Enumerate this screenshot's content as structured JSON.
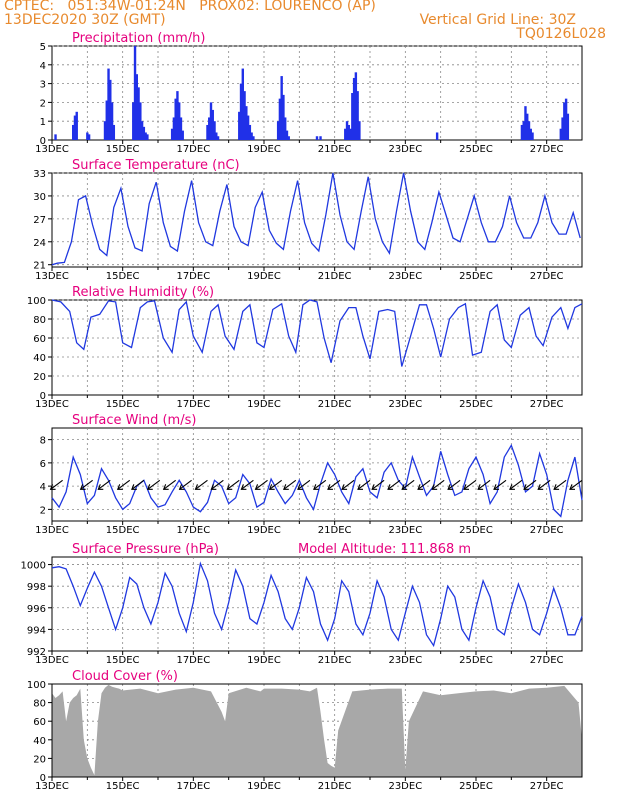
{
  "header": {
    "line1_left": "CPTEC:   051:34W-01:24N   PROX02: LOURENCO (AP)",
    "line2_left": "13DEC2020 30Z (GMT)",
    "line2_right": "Vertical Grid Line: 30Z",
    "line3_right": "TQ0126L028"
  },
  "colors": {
    "line": "#2038e0",
    "bar": "#2030e8",
    "cloud": "#a8a8a8",
    "title": "#e6007e",
    "header": "#e88a2e",
    "grid": "#888888"
  },
  "chart_data": [
    {
      "type": "bar",
      "title": "Precipitation (mm/h)",
      "ylim": [
        0,
        5
      ],
      "yticks": [
        0,
        1,
        2,
        3,
        4,
        5
      ],
      "xlim_days": [
        13,
        28
      ],
      "xticks": [
        "13DEC",
        "15DEC",
        "17DEC",
        "19DEC",
        "21DEC",
        "23DEC",
        "25DEC",
        "27DEC"
      ],
      "x_day": [
        13.1,
        13.6,
        13.65,
        13.7,
        14.0,
        14.05,
        14.5,
        14.55,
        14.6,
        14.65,
        14.7,
        14.75,
        15.3,
        15.35,
        15.4,
        15.45,
        15.5,
        15.55,
        15.6,
        15.65,
        15.7,
        16.4,
        16.45,
        16.5,
        16.55,
        16.6,
        16.65,
        16.7,
        17.4,
        17.45,
        17.5,
        17.55,
        17.6,
        17.65,
        17.7,
        18.3,
        18.35,
        18.4,
        18.45,
        18.5,
        18.55,
        18.6,
        18.65,
        18.7,
        19.4,
        19.45,
        19.5,
        19.55,
        19.6,
        19.65,
        19.7,
        20.5,
        20.6,
        21.3,
        21.35,
        21.4,
        21.45,
        21.5,
        21.55,
        21.6,
        21.65,
        21.7,
        23.9,
        26.3,
        26.35,
        26.4,
        26.45,
        26.5,
        26.55,
        26.6,
        27.4,
        27.45,
        27.5,
        27.55,
        27.6
      ],
      "values": [
        0.3,
        0.8,
        1.3,
        1.5,
        0.4,
        0.3,
        1.0,
        2.1,
        3.8,
        3.2,
        2.0,
        0.8,
        2.0,
        5.0,
        3.5,
        2.8,
        2.0,
        1.0,
        0.7,
        0.4,
        0.3,
        0.6,
        1.2,
        2.2,
        2.6,
        2.0,
        1.2,
        0.5,
        0.8,
        1.2,
        2.0,
        1.6,
        1.0,
        0.4,
        0.2,
        1.5,
        3.0,
        3.8,
        2.6,
        1.8,
        1.3,
        0.8,
        0.4,
        0.2,
        1.0,
        2.2,
        3.4,
        2.4,
        1.2,
        0.5,
        0.2,
        0.2,
        0.2,
        0.6,
        1.0,
        0.8,
        0.6,
        2.5,
        3.3,
        3.6,
        2.6,
        1.0,
        0.4,
        0.8,
        1.0,
        1.8,
        1.4,
        1.0,
        0.6,
        0.4,
        0.6,
        1.2,
        2.0,
        2.2,
        1.4
      ]
    },
    {
      "type": "line",
      "title": "Surface Temperature (nC)",
      "ylim": [
        20.7,
        33
      ],
      "yticks": [
        21,
        24,
        27,
        30,
        33
      ],
      "xlim_days": [
        13,
        28
      ],
      "xticks": [
        "13DEC",
        "15DEC",
        "17DEC",
        "19DEC",
        "21DEC",
        "23DEC",
        "25DEC",
        "27DEC"
      ],
      "x_day": [
        13.0,
        13.15,
        13.35,
        13.55,
        13.75,
        13.95,
        14.15,
        14.35,
        14.55,
        14.75,
        14.95,
        15.15,
        15.35,
        15.55,
        15.75,
        15.95,
        16.15,
        16.35,
        16.55,
        16.75,
        16.95,
        17.15,
        17.35,
        17.55,
        17.75,
        17.95,
        18.15,
        18.35,
        18.55,
        18.75,
        18.95,
        19.15,
        19.35,
        19.55,
        19.75,
        19.95,
        20.15,
        20.35,
        20.55,
        20.75,
        20.95,
        21.15,
        21.35,
        21.55,
        21.75,
        21.95,
        22.15,
        22.35,
        22.55,
        22.75,
        22.95,
        23.15,
        23.35,
        23.55,
        23.75,
        23.95,
        24.15,
        24.35,
        24.55,
        24.75,
        24.95,
        25.15,
        25.35,
        25.55,
        25.75,
        25.95,
        26.15,
        26.35,
        26.55,
        26.75,
        26.95,
        27.15,
        27.35,
        27.55,
        27.75,
        27.95
      ],
      "values": [
        21.0,
        21.2,
        21.3,
        24.0,
        29.5,
        30.0,
        26.2,
        23.0,
        22.2,
        28.5,
        31.0,
        26.0,
        23.2,
        22.8,
        29.0,
        31.8,
        26.5,
        23.4,
        22.8,
        28.0,
        32.0,
        26.5,
        24.0,
        23.5,
        28.0,
        31.5,
        26.0,
        24.0,
        23.5,
        28.5,
        30.5,
        25.5,
        23.8,
        23.0,
        28.0,
        32.0,
        26.5,
        23.8,
        22.8,
        27.5,
        33.0,
        27.5,
        24.0,
        23.0,
        28.0,
        32.5,
        27.0,
        24.0,
        22.5,
        28.0,
        33.0,
        28.0,
        24.0,
        23.0,
        26.5,
        30.5,
        27.5,
        24.5,
        24.0,
        27.0,
        30.0,
        26.5,
        24.0,
        24.0,
        26.0,
        30.0,
        26.5,
        24.5,
        24.5,
        26.5,
        30.0,
        26.5,
        25.0,
        25.0,
        27.8,
        24.5
      ]
    },
    {
      "type": "line",
      "title": "Relative Humidity (%)",
      "ylim": [
        0,
        100
      ],
      "yticks": [
        0,
        20,
        40,
        60,
        80,
        100
      ],
      "xlim_days": [
        13,
        28
      ],
      "xticks": [
        "13DEC",
        "15DEC",
        "17DEC",
        "19DEC",
        "21DEC",
        "23DEC",
        "25DEC",
        "27DEC"
      ],
      "x_day": [
        13.0,
        13.25,
        13.5,
        13.7,
        13.9,
        14.1,
        14.35,
        14.6,
        14.8,
        15.0,
        15.25,
        15.5,
        15.7,
        15.9,
        16.15,
        16.4,
        16.6,
        16.8,
        17.0,
        17.25,
        17.5,
        17.7,
        17.9,
        18.15,
        18.4,
        18.6,
        18.8,
        19.0,
        19.25,
        19.5,
        19.7,
        19.9,
        20.1,
        20.3,
        20.5,
        20.7,
        20.9,
        21.15,
        21.4,
        21.6,
        21.8,
        22.0,
        22.25,
        22.5,
        22.7,
        22.9,
        23.15,
        23.4,
        23.6,
        23.8,
        24.0,
        24.25,
        24.5,
        24.7,
        24.9,
        25.15,
        25.4,
        25.6,
        25.8,
        26.0,
        26.25,
        26.5,
        26.7,
        26.9,
        27.15,
        27.4,
        27.6,
        27.8,
        28.0
      ],
      "values": [
        100,
        98,
        88,
        55,
        48,
        82,
        85,
        99,
        98,
        55,
        50,
        92,
        98,
        99,
        60,
        45,
        90,
        98,
        62,
        45,
        88,
        95,
        62,
        48,
        88,
        95,
        55,
        50,
        90,
        96,
        62,
        45,
        95,
        100,
        98,
        60,
        34,
        78,
        92,
        92,
        62,
        38,
        88,
        90,
        88,
        30,
        62,
        95,
        95,
        70,
        40,
        80,
        92,
        96,
        42,
        45,
        88,
        95,
        58,
        50,
        84,
        92,
        62,
        52,
        82,
        92,
        70,
        92,
        96
      ]
    },
    {
      "type": "line",
      "title": "Surface Wind (m/s)",
      "ylim": [
        1,
        9
      ],
      "yticks": [
        2,
        4,
        6,
        8
      ],
      "xlim_days": [
        13,
        28
      ],
      "xticks": [
        "13DEC",
        "15DEC",
        "17DEC",
        "19DEC",
        "21DEC",
        "23DEC",
        "25DEC",
        "27DEC"
      ],
      "x_day": [
        13.0,
        13.2,
        13.4,
        13.6,
        13.8,
        14.0,
        14.2,
        14.4,
        14.6,
        14.8,
        15.0,
        15.2,
        15.4,
        15.6,
        15.8,
        16.0,
        16.2,
        16.4,
        16.6,
        16.8,
        17.0,
        17.2,
        17.4,
        17.6,
        17.8,
        18.0,
        18.2,
        18.4,
        18.6,
        18.8,
        19.0,
        19.2,
        19.4,
        19.6,
        19.8,
        20.0,
        20.2,
        20.4,
        20.6,
        20.8,
        21.0,
        21.2,
        21.4,
        21.6,
        21.8,
        22.0,
        22.2,
        22.4,
        22.6,
        22.8,
        23.0,
        23.2,
        23.4,
        23.6,
        23.8,
        24.0,
        24.2,
        24.4,
        24.6,
        24.8,
        25.0,
        25.2,
        25.4,
        25.6,
        25.8,
        26.0,
        26.2,
        26.4,
        26.6,
        26.8,
        27.0,
        27.2,
        27.4,
        27.6,
        27.8,
        28.0
      ],
      "values": [
        3.0,
        2.2,
        3.5,
        6.5,
        5.0,
        2.5,
        3.2,
        5.5,
        4.5,
        3.0,
        2.0,
        2.5,
        4.0,
        4.5,
        3.0,
        2.2,
        2.4,
        3.5,
        4.5,
        3.5,
        2.2,
        1.8,
        2.6,
        4.5,
        4.0,
        2.5,
        3.0,
        5.0,
        4.2,
        2.2,
        2.6,
        4.6,
        3.5,
        2.5,
        3.2,
        4.5,
        3.0,
        2.0,
        4.2,
        6.0,
        5.0,
        3.5,
        2.5,
        4.8,
        5.5,
        3.5,
        3.0,
        5.2,
        6.0,
        4.5,
        3.8,
        6.5,
        4.8,
        3.2,
        4.0,
        7.0,
        5.0,
        3.2,
        3.5,
        5.5,
        6.5,
        5.0,
        2.5,
        3.5,
        6.5,
        7.5,
        5.8,
        3.5,
        4.0,
        6.8,
        5.0,
        2.0,
        1.4,
        4.5,
        6.5,
        2.8
      ],
      "arrows_day": [
        13.3,
        14.15,
        14.65,
        15.2,
        15.6,
        16.05,
        16.5,
        16.95,
        17.4,
        17.85,
        18.3,
        18.7,
        19.1,
        19.5,
        19.9,
        20.3,
        20.75,
        21.15,
        21.55,
        22.0,
        22.4,
        22.85,
        23.25,
        23.7,
        24.1,
        24.55,
        25.0,
        25.4,
        25.85,
        26.3,
        26.7,
        27.1,
        27.55,
        28.0
      ]
    },
    {
      "type": "line",
      "title": "Surface Pressure (hPa)",
      "subtitle": "Model Altitude: 111.868  m",
      "ylim": [
        992,
        1000.7
      ],
      "yticks": [
        992,
        994,
        996,
        998,
        1000
      ],
      "xlim_days": [
        13,
        28
      ],
      "xticks": [
        "13DEC",
        "15DEC",
        "17DEC",
        "19DEC",
        "21DEC",
        "23DEC",
        "25DEC",
        "27DEC"
      ],
      "x_day": [
        13.0,
        13.2,
        13.4,
        13.6,
        13.8,
        14.0,
        14.2,
        14.4,
        14.6,
        14.8,
        15.0,
        15.2,
        15.4,
        15.6,
        15.8,
        16.0,
        16.2,
        16.4,
        16.6,
        16.8,
        17.0,
        17.2,
        17.4,
        17.6,
        17.8,
        18.0,
        18.2,
        18.4,
        18.6,
        18.8,
        19.0,
        19.2,
        19.4,
        19.6,
        19.8,
        20.0,
        20.2,
        20.4,
        20.6,
        20.8,
        21.0,
        21.2,
        21.4,
        21.6,
        21.8,
        22.0,
        22.2,
        22.4,
        22.6,
        22.8,
        23.0,
        23.2,
        23.4,
        23.6,
        23.8,
        24.0,
        24.2,
        24.4,
        24.6,
        24.8,
        25.0,
        25.2,
        25.4,
        25.6,
        25.8,
        26.0,
        26.2,
        26.4,
        26.6,
        26.8,
        27.0,
        27.2,
        27.4,
        27.6,
        27.8,
        28.0
      ],
      "values": [
        999.7,
        999.8,
        999.6,
        998.0,
        996.2,
        997.8,
        999.3,
        998.0,
        996.0,
        994.0,
        996.0,
        998.8,
        998.2,
        996.0,
        994.5,
        996.5,
        999.2,
        998.0,
        995.5,
        993.8,
        996.5,
        1000.1,
        998.5,
        995.5,
        994.0,
        996.5,
        999.5,
        998.0,
        995.0,
        994.5,
        996.5,
        999.0,
        997.5,
        995.0,
        994.0,
        996.0,
        998.8,
        997.5,
        994.5,
        993.0,
        995.0,
        998.5,
        997.5,
        994.5,
        993.5,
        995.5,
        998.5,
        997.0,
        994.0,
        993.0,
        995.5,
        998.0,
        996.5,
        993.5,
        992.5,
        995.0,
        998.0,
        997.0,
        994.0,
        993.0,
        996.0,
        998.5,
        997.0,
        994.0,
        993.5,
        996.0,
        998.2,
        996.5,
        994.0,
        993.5,
        995.5,
        997.8,
        996.0,
        993.5,
        993.5,
        995.2
      ]
    },
    {
      "type": "area",
      "title": "Cloud Cover (%)",
      "ylim": [
        0,
        100
      ],
      "yticks": [
        0,
        20,
        40,
        60,
        80,
        100
      ],
      "xlim_days": [
        13,
        28
      ],
      "xticks": [
        "13DEC",
        "15DEC",
        "17DEC",
        "19DEC",
        "21DEC",
        "23DEC",
        "25DEC",
        "27DEC"
      ],
      "x_day": [
        13.0,
        13.1,
        13.2,
        13.3,
        13.4,
        13.5,
        13.6,
        13.7,
        13.8,
        13.9,
        14.0,
        14.1,
        14.2,
        14.3,
        14.4,
        14.5,
        14.6,
        14.7,
        14.8,
        14.9,
        15.0,
        15.5,
        16.0,
        16.5,
        17.0,
        17.5,
        17.8,
        17.9,
        18.0,
        18.5,
        18.9,
        19.0,
        19.5,
        20.0,
        20.3,
        20.5,
        20.6,
        20.7,
        20.8,
        20.9,
        21.0,
        21.1,
        21.5,
        22.0,
        22.5,
        22.9,
        23.0,
        23.1,
        23.5,
        24.0,
        24.5,
        25.0,
        25.5,
        26.0,
        26.5,
        27.0,
        27.5,
        27.9,
        28.0
      ],
      "values": [
        90,
        85,
        88,
        92,
        60,
        80,
        85,
        88,
        95,
        40,
        20,
        10,
        2,
        60,
        90,
        96,
        99,
        97,
        96,
        95,
        93,
        95,
        90,
        94,
        96,
        92,
        70,
        60,
        90,
        96,
        92,
        95,
        95,
        94,
        92,
        96,
        70,
        40,
        15,
        12,
        10,
        50,
        92,
        94,
        95,
        95,
        8,
        60,
        92,
        88,
        90,
        92,
        93,
        90,
        95,
        96,
        98,
        80,
        40
      ]
    }
  ]
}
